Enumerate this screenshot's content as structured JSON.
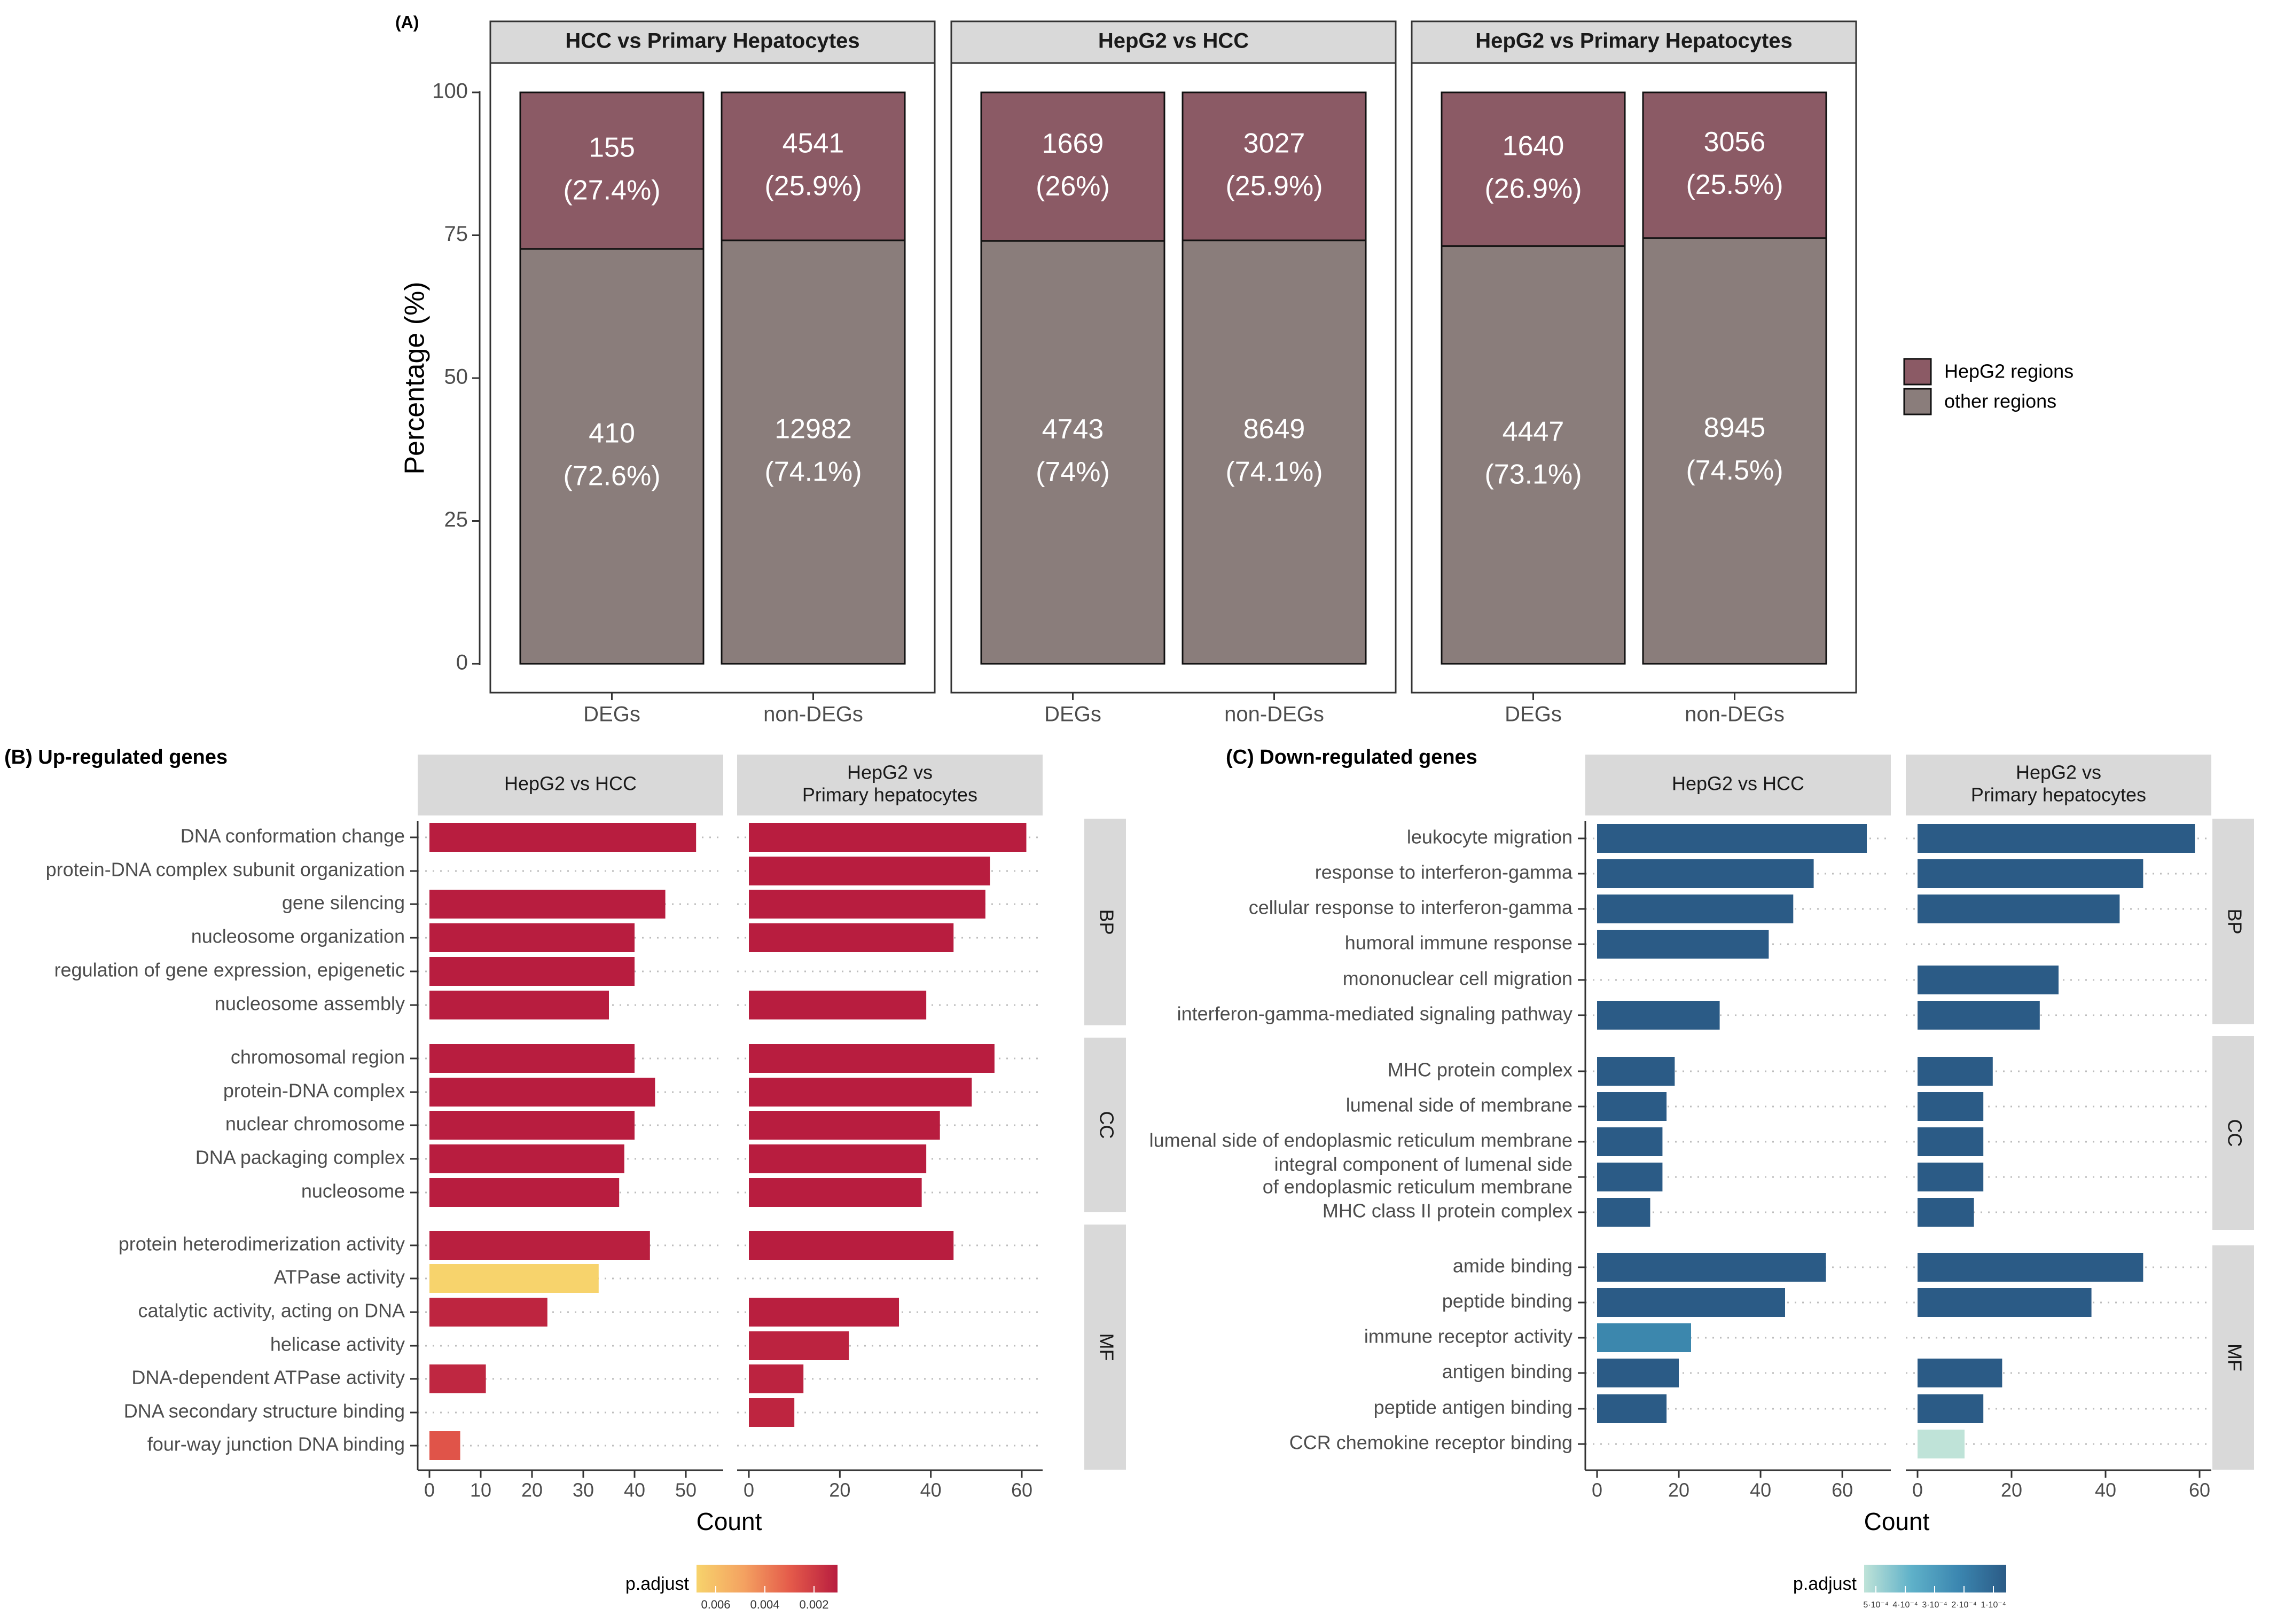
{
  "chart_data": [
    {
      "type": "stacked-bar",
      "panel_label": "(A)",
      "ylabel": "Percentage (%)",
      "ylim": [
        0,
        100
      ],
      "yticks": [
        "0",
        "25",
        "50",
        "75",
        "100"
      ],
      "categories": [
        "DEGs",
        "non-DEGs"
      ],
      "facets": [
        {
          "title": "HCC vs Primary Hepatocytes",
          "bars": [
            {
              "category": "DEGs",
              "hepg2_count": "155",
              "hepg2_pct": "(27.4%)",
              "hepg2_value": 27.4,
              "other_count": "410",
              "other_pct": "(72.6%)",
              "other_value": 72.6
            },
            {
              "category": "non-DEGs",
              "hepg2_count": "4541",
              "hepg2_pct": "(25.9%)",
              "hepg2_value": 25.9,
              "other_count": "12982",
              "other_pct": "(74.1%)",
              "other_value": 74.1
            }
          ]
        },
        {
          "title": "HepG2 vs HCC",
          "bars": [
            {
              "category": "DEGs",
              "hepg2_count": "1669",
              "hepg2_pct": "(26%)",
              "hepg2_value": 26,
              "other_count": "4743",
              "other_pct": "(74%)",
              "other_value": 74
            },
            {
              "category": "non-DEGs",
              "hepg2_count": "3027",
              "hepg2_pct": "(25.9%)",
              "hepg2_value": 25.9,
              "other_count": "8649",
              "other_pct": "(74.1%)",
              "other_value": 74.1
            }
          ]
        },
        {
          "title": "HepG2 vs Primary Hepatocytes",
          "bars": [
            {
              "category": "DEGs",
              "hepg2_count": "1640",
              "hepg2_pct": "(26.9%)",
              "hepg2_value": 26.9,
              "other_count": "4447",
              "other_pct": "(73.1%)",
              "other_value": 73.1
            },
            {
              "category": "non-DEGs",
              "hepg2_count": "3056",
              "hepg2_pct": "(25.5%)",
              "hepg2_value": 25.5,
              "other_count": "8945",
              "other_pct": "(74.5%)",
              "other_value": 74.5
            }
          ]
        }
      ],
      "legend": [
        {
          "label": "HepG2 regions",
          "color": "#8b5a65"
        },
        {
          "label": "other regions",
          "color": "#8a7d7b"
        }
      ]
    },
    {
      "type": "bar",
      "orientation": "horizontal",
      "panel_label": "(B) Up-regulated genes",
      "xlabel": "Count",
      "facets": [
        {
          "title": "HepG2 vs HCC",
          "xlim": [
            0,
            55
          ],
          "xticks": [
            0,
            10,
            20,
            30,
            40,
            50
          ]
        },
        {
          "title_lines": [
            "HepG2 vs",
            "Primary hepatocytes"
          ],
          "xlim": [
            0,
            62
          ],
          "xticks": [
            0,
            20,
            40,
            60
          ]
        }
      ],
      "groups": [
        {
          "label": "BP",
          "terms": [
            {
              "term": "DNA conformation change",
              "values": [
                52,
                61
              ],
              "padj": [
                0.0001,
                0.0001
              ]
            },
            {
              "term": "protein-DNA complex subunit organization",
              "values": [
                null,
                53
              ],
              "padj": [
                null,
                0.0001
              ]
            },
            {
              "term": "gene silencing",
              "values": [
                46,
                52
              ],
              "padj": [
                0.0001,
                0.0001
              ]
            },
            {
              "term": "nucleosome organization",
              "values": [
                40,
                45
              ],
              "padj": [
                0.0001,
                0.0001
              ]
            },
            {
              "term": "regulation of gene expression, epigenetic",
              "values": [
                40,
                null
              ],
              "padj": [
                0.0001,
                null
              ]
            },
            {
              "term": "nucleosome assembly",
              "values": [
                35,
                39
              ],
              "padj": [
                0.0001,
                0.0001
              ]
            }
          ]
        },
        {
          "label": "CC",
          "terms": [
            {
              "term": "chromosomal region",
              "values": [
                40,
                54
              ],
              "padj": [
                0.0001,
                0.0001
              ]
            },
            {
              "term": "protein-DNA complex",
              "values": [
                44,
                49
              ],
              "padj": [
                0.0001,
                0.0001
              ]
            },
            {
              "term": "nuclear chromosome",
              "values": [
                40,
                42
              ],
              "padj": [
                0.0001,
                0.0001
              ]
            },
            {
              "term": "DNA packaging complex",
              "values": [
                38,
                39
              ],
              "padj": [
                0.0001,
                0.0001
              ]
            },
            {
              "term": "nucleosome",
              "values": [
                37,
                38
              ],
              "padj": [
                0.0001,
                0.0001
              ]
            }
          ]
        },
        {
          "label": "MF",
          "terms": [
            {
              "term": "protein heterodimerization activity",
              "values": [
                43,
                45
              ],
              "padj": [
                0.0002,
                0.0001
              ]
            },
            {
              "term": "ATPase activity",
              "values": [
                33,
                null
              ],
              "padj": [
                0.0065,
                null
              ]
            },
            {
              "term": "catalytic activity, acting on DNA",
              "values": [
                23,
                33
              ],
              "padj": [
                0.0005,
                0.0002
              ]
            },
            {
              "term": "helicase activity",
              "values": [
                null,
                22
              ],
              "padj": [
                null,
                0.0004
              ]
            },
            {
              "term": "DNA-dependent ATPase activity",
              "values": [
                11,
                12
              ],
              "padj": [
                0.0006,
                0.0004
              ]
            },
            {
              "term": "DNA secondary structure binding",
              "values": [
                null,
                10
              ],
              "padj": [
                null,
                0.0005
              ]
            },
            {
              "term": "four-way junction DNA binding",
              "values": [
                6,
                null
              ],
              "padj": [
                0.003,
                null
              ]
            }
          ]
        }
      ],
      "legend": {
        "title": "p.adjust",
        "ticks": [
          "0.006",
          "0.004",
          "0.002"
        ],
        "colors": [
          "#f7d36c",
          "#f4a261",
          "#e45a4a",
          "#b81d3f"
        ]
      }
    },
    {
      "type": "bar",
      "orientation": "horizontal",
      "panel_label": "(C) Down-regulated genes",
      "xlabel": "Count",
      "facets": [
        {
          "title": "HepG2 vs HCC",
          "xlim": [
            0,
            69
          ],
          "xticks": [
            0,
            20,
            40,
            60
          ]
        },
        {
          "title_lines": [
            "HepG2 vs",
            "Primary hepatocytes"
          ],
          "xlim": [
            0,
            60
          ],
          "xticks": [
            0,
            20,
            40,
            60
          ]
        }
      ],
      "groups": [
        {
          "label": "BP",
          "terms": [
            {
              "term": "leukocyte migration",
              "values": [
                66,
                59
              ],
              "padj": [
                0.0001,
                0.0001
              ]
            },
            {
              "term": "response to interferon-gamma",
              "values": [
                53,
                48
              ],
              "padj": [
                0.0001,
                0.0001
              ]
            },
            {
              "term": "cellular response to interferon-gamma",
              "values": [
                48,
                43
              ],
              "padj": [
                0.0001,
                0.0001
              ]
            },
            {
              "term": "humoral immune response",
              "values": [
                42,
                null
              ],
              "padj": [
                0.0001,
                null
              ]
            },
            {
              "term": "mononuclear cell migration",
              "values": [
                null,
                30
              ],
              "padj": [
                null,
                0.0001
              ]
            },
            {
              "term": "interferon-gamma-mediated signaling pathway",
              "values": [
                30,
                26
              ],
              "padj": [
                0.0001,
                0.0001
              ]
            }
          ]
        },
        {
          "label": "CC",
          "terms": [
            {
              "term": "MHC protein complex",
              "values": [
                19,
                16
              ],
              "padj": [
                0.0001,
                0.0001
              ]
            },
            {
              "term": "lumenal side of membrane",
              "values": [
                17,
                14
              ],
              "padj": [
                0.0001,
                0.0001
              ]
            },
            {
              "term": "lumenal side of endoplasmic reticulum membrane",
              "values": [
                16,
                14
              ],
              "padj": [
                0.0001,
                0.0001
              ]
            },
            {
              "term_lines": [
                "integral component of lumenal side",
                "of endoplasmic reticulum membrane"
              ],
              "values": [
                16,
                14
              ],
              "padj": [
                0.0001,
                0.0001
              ]
            },
            {
              "term": "MHC class II protein complex",
              "values": [
                13,
                12
              ],
              "padj": [
                0.0001,
                0.0001
              ]
            }
          ]
        },
        {
          "label": "MF",
          "terms": [
            {
              "term": "amide binding",
              "values": [
                56,
                48
              ],
              "padj": [
                0.0001,
                0.0001
              ]
            },
            {
              "term": "peptide binding",
              "values": [
                46,
                37
              ],
              "padj": [
                0.0001,
                0.0001
              ]
            },
            {
              "term": "immune receptor activity",
              "values": [
                23,
                null
              ],
              "padj": [
                0.0003,
                null
              ]
            },
            {
              "term": "antigen binding",
              "values": [
                20,
                18
              ],
              "padj": [
                0.0001,
                0.0001
              ]
            },
            {
              "term": "peptide antigen binding",
              "values": [
                17,
                14
              ],
              "padj": [
                0.0001,
                0.0001
              ]
            },
            {
              "term": "CCR chemokine receptor binding",
              "values": [
                null,
                10
              ],
              "padj": [
                null,
                0.0005
              ]
            }
          ]
        }
      ],
      "legend": {
        "title": "p.adjust",
        "ticks": [
          "5·10⁻⁴",
          "4·10⁻⁴",
          "3·10⁻⁴",
          "2·10⁻⁴",
          "1·10⁻⁴"
        ],
        "colors": [
          "#bfe3d8",
          "#5fb1c9",
          "#3b86b0",
          "#2b5b86"
        ]
      }
    }
  ]
}
